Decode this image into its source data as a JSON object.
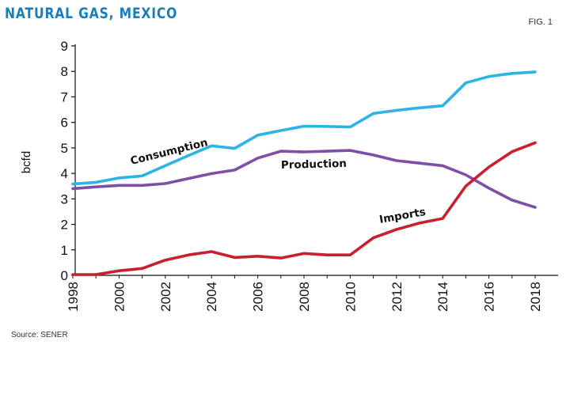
{
  "header": {
    "title": "NATURAL GAS, MEXICO",
    "fig": "FIG. 1"
  },
  "footer": {
    "source": "Source: SENER"
  },
  "chart_data": {
    "type": "line",
    "ylabel": "bcfd",
    "xlabel": "",
    "ylim": [
      0,
      9
    ],
    "xlim": [
      1998,
      2018
    ],
    "yticks": [
      0,
      1,
      2,
      3,
      4,
      5,
      6,
      7,
      8,
      9
    ],
    "xticks": [
      1998,
      2000,
      2002,
      2004,
      2006,
      2008,
      2010,
      2012,
      2014,
      2016,
      2018
    ],
    "grid": false,
    "x": [
      1998,
      1999,
      2000,
      2001,
      2002,
      2003,
      2004,
      2005,
      2006,
      2007,
      2008,
      2009,
      2010,
      2011,
      2012,
      2013,
      2014,
      2015,
      2016,
      2017,
      2018
    ],
    "series": [
      {
        "name": "Consumption",
        "color": "#2db3e6",
        "values": [
          3.58,
          3.65,
          3.82,
          3.9,
          4.3,
          4.7,
          5.08,
          4.98,
          5.5,
          5.68,
          5.85,
          5.84,
          5.82,
          6.35,
          6.47,
          6.57,
          6.65,
          7.55,
          7.8,
          7.92,
          7.98
        ]
      },
      {
        "name": "Production",
        "color": "#7f4fa6",
        "values": [
          3.4,
          3.47,
          3.53,
          3.53,
          3.6,
          3.8,
          3.99,
          4.13,
          4.6,
          4.87,
          4.84,
          4.87,
          4.9,
          4.72,
          4.5,
          4.4,
          4.3,
          3.94,
          3.42,
          2.95,
          2.67
        ]
      },
      {
        "name": "Imports",
        "color": "#c8202e",
        "values": [
          0.03,
          0.03,
          0.18,
          0.27,
          0.6,
          0.8,
          0.93,
          0.7,
          0.75,
          0.68,
          0.86,
          0.8,
          0.8,
          1.47,
          1.8,
          2.05,
          2.23,
          3.5,
          4.25,
          4.85,
          5.2
        ]
      }
    ]
  }
}
